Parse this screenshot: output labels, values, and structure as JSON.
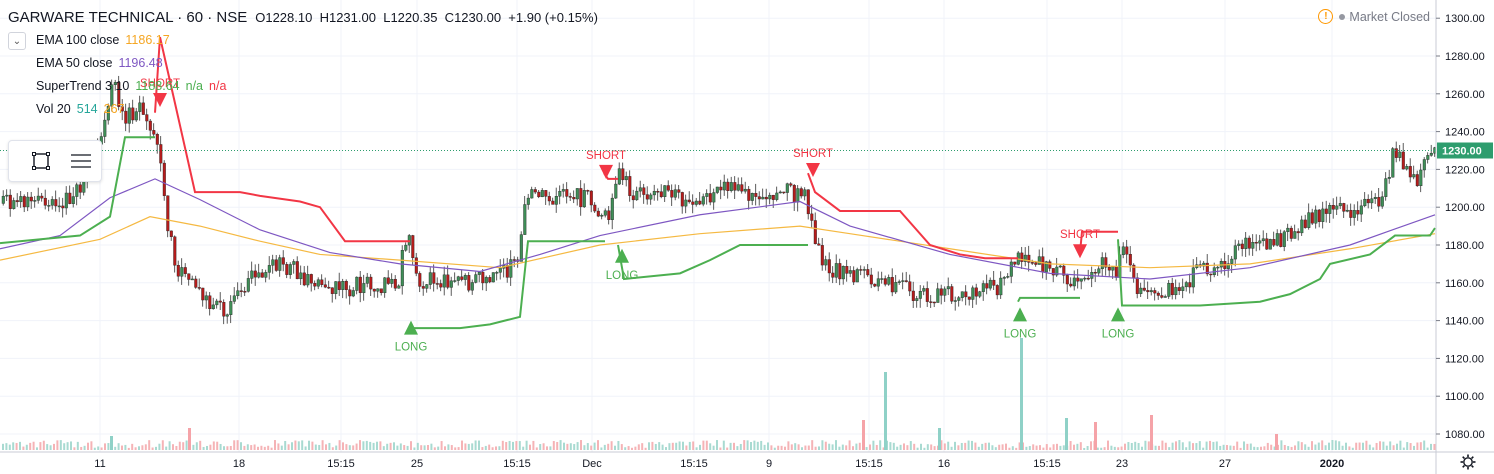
{
  "header": {
    "symbol": "GARWARE TECHNICAL · 60 · NSE",
    "ohlc": [
      {
        "label": "O",
        "value": "1228.10"
      },
      {
        "label": "H",
        "value": "1231.00"
      },
      {
        "label": "L",
        "value": "1220.35"
      },
      {
        "label": "C",
        "value": "1230.00"
      }
    ],
    "change": "+1.90 (+0.15%)",
    "market_status": "Market Closed"
  },
  "indicators": [
    {
      "label": "EMA 100 close",
      "values": [
        "1186.17"
      ],
      "colors": [
        "#f5a623"
      ]
    },
    {
      "label": "EMA 50 close",
      "values": [
        "1196.48"
      ],
      "colors": [
        "#7e57c2"
      ]
    },
    {
      "label": "SuperTrend 3 10",
      "values": [
        "1188.64",
        "n/a",
        "n/a"
      ],
      "colors": [
        "#4caf50",
        "#4caf50",
        "#f23645"
      ]
    },
    {
      "label": "Vol 20",
      "values": [
        "514",
        "267"
      ],
      "colors": [
        "#26a69a",
        "#f5a623"
      ]
    }
  ],
  "colors": {
    "up": "#26a69a",
    "down": "#f23645",
    "candle_up": "#3f8f58",
    "candle_down": "#b71c1c",
    "supertrend_up": "#4caf50",
    "supertrend_down": "#f23645",
    "ema100": "#f5b942",
    "ema50": "#7e57c2",
    "price_tag": "#2e9d6e"
  },
  "icons": [
    "chevron-down-icon",
    "rectangle-tool-icon",
    "settings-lines-icon",
    "warning-icon",
    "gear-icon"
  ],
  "chart_data": {
    "type": "candlestick",
    "title": "GARWARE TECHNICAL · 60 · NSE",
    "ylim": [
      1070,
      1305
    ],
    "y_ticks": [
      1080,
      1100,
      1120,
      1140,
      1160,
      1180,
      1200,
      1220,
      1240,
      1260,
      1280,
      1300
    ],
    "y_tick_labels": [
      "1080.00",
      "1100.00",
      "1120.00",
      "1140.00",
      "1160.00",
      "1180.00",
      "1200.00",
      "1220.00",
      "1240.00",
      "1260.00",
      "1280.00",
      "1300.00"
    ],
    "last_price": 1230.0,
    "last_price_label": "1230.00",
    "x_ticks": [
      "11",
      "18",
      "15:15",
      "25",
      "15:15",
      "Dec",
      "15:15",
      "9",
      "15:15",
      "16",
      "15:15",
      "23",
      "27",
      "2020"
    ],
    "price_path": [
      [
        0,
        1202
      ],
      [
        30,
        1203
      ],
      [
        60,
        1200
      ],
      [
        80,
        1210
      ],
      [
        100,
        1232
      ],
      [
        115,
        1265
      ],
      [
        128,
        1248
      ],
      [
        145,
        1252
      ],
      [
        155,
        1240
      ],
      [
        162,
        1225
      ],
      [
        170,
        1188
      ],
      [
        180,
        1168
      ],
      [
        190,
        1160
      ],
      [
        200,
        1155
      ],
      [
        215,
        1150
      ],
      [
        230,
        1144
      ],
      [
        245,
        1158
      ],
      [
        260,
        1165
      ],
      [
        280,
        1172
      ],
      [
        300,
        1165
      ],
      [
        320,
        1158
      ],
      [
        345,
        1156
      ],
      [
        365,
        1160
      ],
      [
        385,
        1158
      ],
      [
        400,
        1160
      ],
      [
        410,
        1188
      ],
      [
        420,
        1160
      ],
      [
        440,
        1162
      ],
      [
        470,
        1160
      ],
      [
        500,
        1165
      ],
      [
        520,
        1170
      ],
      [
        530,
        1208
      ],
      [
        560,
        1205
      ],
      [
        590,
        1205
      ],
      [
        600,
        1198
      ],
      [
        610,
        1192
      ],
      [
        620,
        1220
      ],
      [
        640,
        1205
      ],
      [
        660,
        1208
      ],
      [
        700,
        1204
      ],
      [
        730,
        1210
      ],
      [
        760,
        1205
      ],
      [
        790,
        1208
      ],
      [
        808,
        1205
      ],
      [
        815,
        1190
      ],
      [
        825,
        1168
      ],
      [
        850,
        1165
      ],
      [
        880,
        1160
      ],
      [
        905,
        1157
      ],
      [
        930,
        1152
      ],
      [
        960,
        1154
      ],
      [
        985,
        1156
      ],
      [
        1005,
        1158
      ],
      [
        1020,
        1175
      ],
      [
        1040,
        1170
      ],
      [
        1060,
        1165
      ],
      [
        1080,
        1162
      ],
      [
        1100,
        1170
      ],
      [
        1118,
        1165
      ],
      [
        1125,
        1178
      ],
      [
        1140,
        1155
      ],
      [
        1170,
        1157
      ],
      [
        1190,
        1160
      ],
      [
        1200,
        1172
      ],
      [
        1220,
        1165
      ],
      [
        1240,
        1180
      ],
      [
        1260,
        1178
      ],
      [
        1280,
        1183
      ],
      [
        1300,
        1190
      ],
      [
        1320,
        1195
      ],
      [
        1340,
        1200
      ],
      [
        1360,
        1198
      ],
      [
        1385,
        1203
      ],
      [
        1395,
        1228
      ],
      [
        1410,
        1222
      ],
      [
        1420,
        1215
      ],
      [
        1435,
        1230
      ]
    ],
    "ema100": [
      [
        0,
        1172
      ],
      [
        100,
        1183
      ],
      [
        150,
        1195
      ],
      [
        200,
        1190
      ],
      [
        260,
        1182
      ],
      [
        320,
        1175
      ],
      [
        400,
        1172
      ],
      [
        500,
        1168
      ],
      [
        600,
        1180
      ],
      [
        700,
        1186
      ],
      [
        800,
        1190
      ],
      [
        850,
        1186
      ],
      [
        950,
        1178
      ],
      [
        1050,
        1170
      ],
      [
        1150,
        1168
      ],
      [
        1250,
        1170
      ],
      [
        1350,
        1178
      ],
      [
        1435,
        1186
      ]
    ],
    "ema50": [
      [
        0,
        1178
      ],
      [
        60,
        1185
      ],
      [
        110,
        1205
      ],
      [
        155,
        1215
      ],
      [
        200,
        1204
      ],
      [
        260,
        1188
      ],
      [
        330,
        1176
      ],
      [
        400,
        1170
      ],
      [
        480,
        1166
      ],
      [
        540,
        1175
      ],
      [
        600,
        1185
      ],
      [
        700,
        1196
      ],
      [
        800,
        1203
      ],
      [
        850,
        1190
      ],
      [
        950,
        1175
      ],
      [
        1050,
        1165
      ],
      [
        1150,
        1162
      ],
      [
        1250,
        1168
      ],
      [
        1350,
        1180
      ],
      [
        1435,
        1196
      ]
    ],
    "supertrend_up": [
      [
        [
          0,
          1181
        ],
        [
          80,
          1185
        ],
        [
          110,
          1195
        ],
        [
          125,
          1237
        ],
        [
          155,
          1237
        ]
      ],
      [
        [
          410,
          1136
        ],
        [
          460,
          1136
        ],
        [
          490,
          1138
        ],
        [
          520,
          1142
        ],
        [
          528,
          1182
        ],
        [
          600,
          1182
        ],
        [
          605,
          1182
        ]
      ],
      [
        [
          618,
          1180
        ],
        [
          624,
          1162
        ],
        [
          680,
          1165
        ],
        [
          710,
          1172
        ],
        [
          740,
          1180
        ],
        [
          808,
          1180
        ]
      ],
      [
        [
          1018,
          1150
        ],
        [
          1020,
          1152
        ],
        [
          1075,
          1152
        ],
        [
          1080,
          1152
        ]
      ],
      [
        [
          1118,
          1183
        ],
        [
          1122,
          1148
        ],
        [
          1200,
          1148
        ],
        [
          1260,
          1150
        ],
        [
          1290,
          1154
        ],
        [
          1320,
          1162
        ],
        [
          1330,
          1170
        ],
        [
          1370,
          1175
        ],
        [
          1395,
          1185
        ],
        [
          1430,
          1185
        ],
        [
          1435,
          1189
        ]
      ]
    ],
    "supertrend_down": [
      [
        [
          155,
          1250
        ],
        [
          160,
          1290
        ],
        [
          175,
          1255
        ],
        [
          195,
          1208
        ],
        [
          240,
          1208
        ],
        [
          260,
          1206
        ],
        [
          300,
          1203
        ],
        [
          320,
          1200
        ],
        [
          345,
          1182
        ],
        [
          410,
          1182
        ]
      ],
      [
        [
          604,
          1218
        ],
        [
          608,
          1215
        ],
        [
          618,
          1215
        ]
      ],
      [
        [
          808,
          1218
        ],
        [
          815,
          1208
        ],
        [
          840,
          1198
        ],
        [
          900,
          1198
        ],
        [
          930,
          1180
        ],
        [
          960,
          1175
        ],
        [
          985,
          1173
        ],
        [
          1018,
          1173
        ]
      ],
      [
        [
          1080,
          1176
        ],
        [
          1082,
          1187
        ],
        [
          1115,
          1187
        ],
        [
          1118,
          1187
        ]
      ]
    ],
    "signals": [
      {
        "label": "SHORT",
        "x": 160,
        "price": 1253,
        "type": "short"
      },
      {
        "label": "SHORT",
        "x": 606,
        "price": 1215,
        "type": "short"
      },
      {
        "label": "SHORT",
        "x": 813,
        "price": 1216,
        "type": "short"
      },
      {
        "label": "SHORT",
        "x": 1080,
        "price": 1173,
        "type": "short"
      },
      {
        "label": "LONG",
        "x": 411,
        "price": 1140,
        "type": "long"
      },
      {
        "label": "LONG",
        "x": 622,
        "price": 1178,
        "type": "long"
      },
      {
        "label": "LONG",
        "x": 1020,
        "price": 1147,
        "type": "long"
      },
      {
        "label": "LONG",
        "x": 1118,
        "price": 1147,
        "type": "long"
      }
    ],
    "volume_spikes": [
      {
        "x": 884,
        "h": 78,
        "color": "up"
      },
      {
        "x": 1020,
        "h": 112,
        "color": "up"
      },
      {
        "x": 862,
        "h": 30,
        "color": "down"
      },
      {
        "x": 938,
        "h": 22,
        "color": "up"
      },
      {
        "x": 1065,
        "h": 32,
        "color": "up"
      },
      {
        "x": 1094,
        "h": 28,
        "color": "down"
      },
      {
        "x": 1150,
        "h": 35,
        "color": "down"
      },
      {
        "x": 1275,
        "h": 16,
        "color": "down"
      },
      {
        "x": 188,
        "h": 22,
        "color": "down"
      },
      {
        "x": 110,
        "h": 14,
        "color": "up"
      }
    ]
  }
}
